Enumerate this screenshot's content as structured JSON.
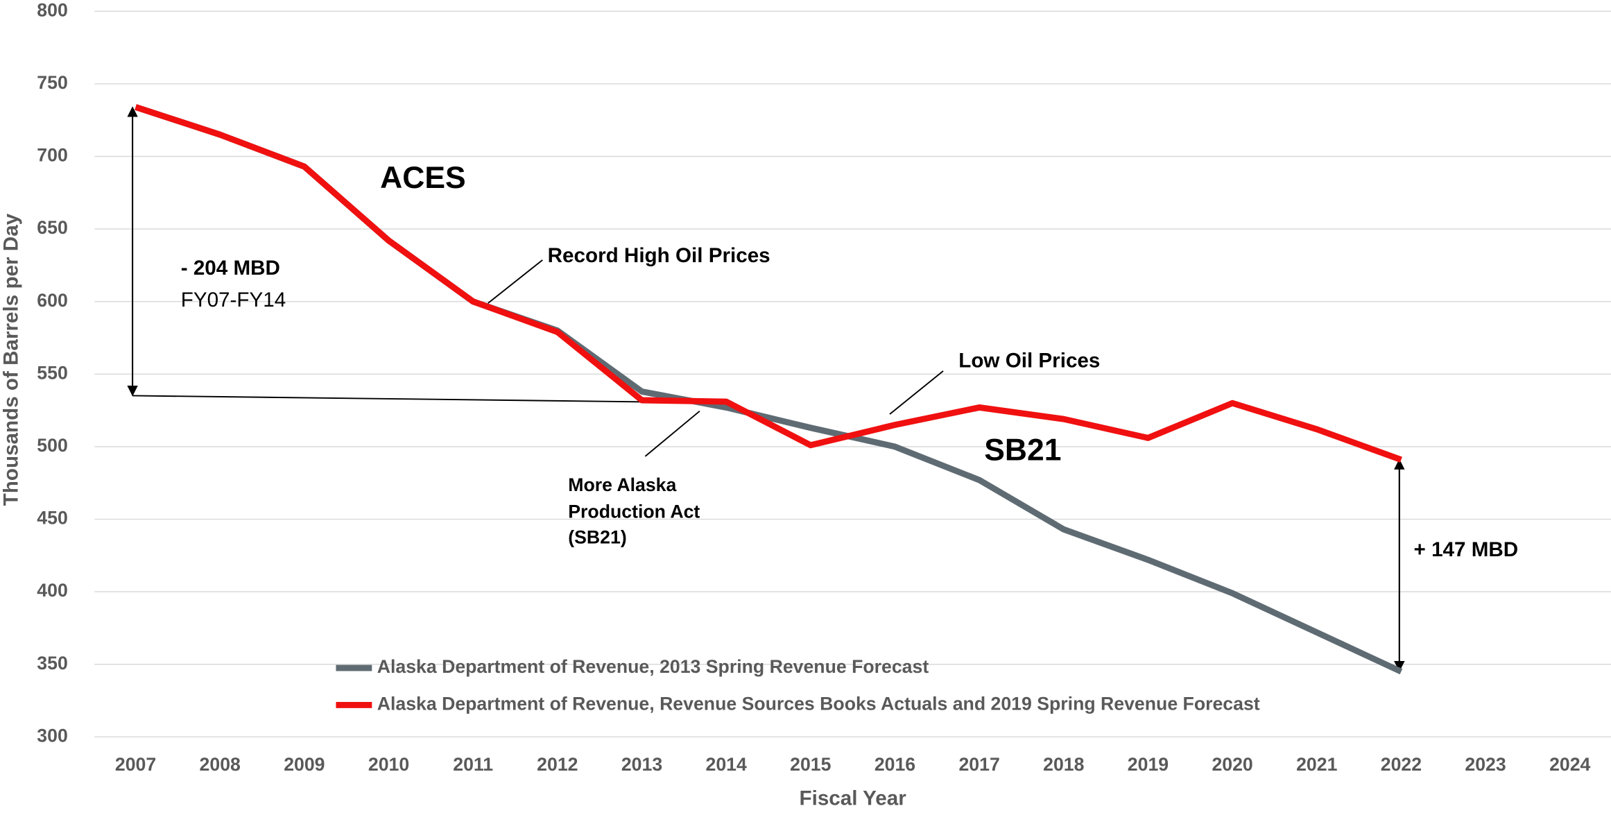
{
  "chart_data": {
    "type": "line",
    "x_label": "Fiscal Year",
    "y_label": "Thousands of Barrels per Day",
    "categories": [
      "2007",
      "2008",
      "2009",
      "2010",
      "2011",
      "2012",
      "2013",
      "2014",
      "2015",
      "2016",
      "2017",
      "2018",
      "2019",
      "2020",
      "2021",
      "2022",
      "2023",
      "2024"
    ],
    "series": [
      {
        "name": "Alaska Department of Revenue, 2013 Spring Revenue Forecast",
        "color": "#5f6b73",
        "values": [
          734,
          715,
          693,
          642,
          600,
          580,
          538,
          527,
          513,
          500,
          477,
          443,
          422,
          399,
          372,
          345,
          null,
          null
        ]
      },
      {
        "name": "Alaska Department of Revenue, Revenue Sources Books Actuals and 2019 Spring Revenue Forecast",
        "color": "#f01010",
        "values": [
          734,
          715,
          693,
          642,
          600,
          579,
          532,
          531,
          501,
          515,
          527,
          519,
          506,
          530,
          512,
          491,
          null,
          null
        ]
      }
    ],
    "ylim": [
      300,
      800
    ],
    "yticks": [
      300,
      350,
      400,
      450,
      500,
      550,
      600,
      650,
      700,
      750,
      800
    ],
    "grid": true,
    "annotations": [
      "ACES",
      "Record High Oil Prices",
      "- 204 MBD",
      "FY07-FY14",
      "Low Oil Prices",
      "SB21",
      "More Alaska",
      "Production Act",
      "(SB21)",
      "+ 147 MBD"
    ]
  }
}
